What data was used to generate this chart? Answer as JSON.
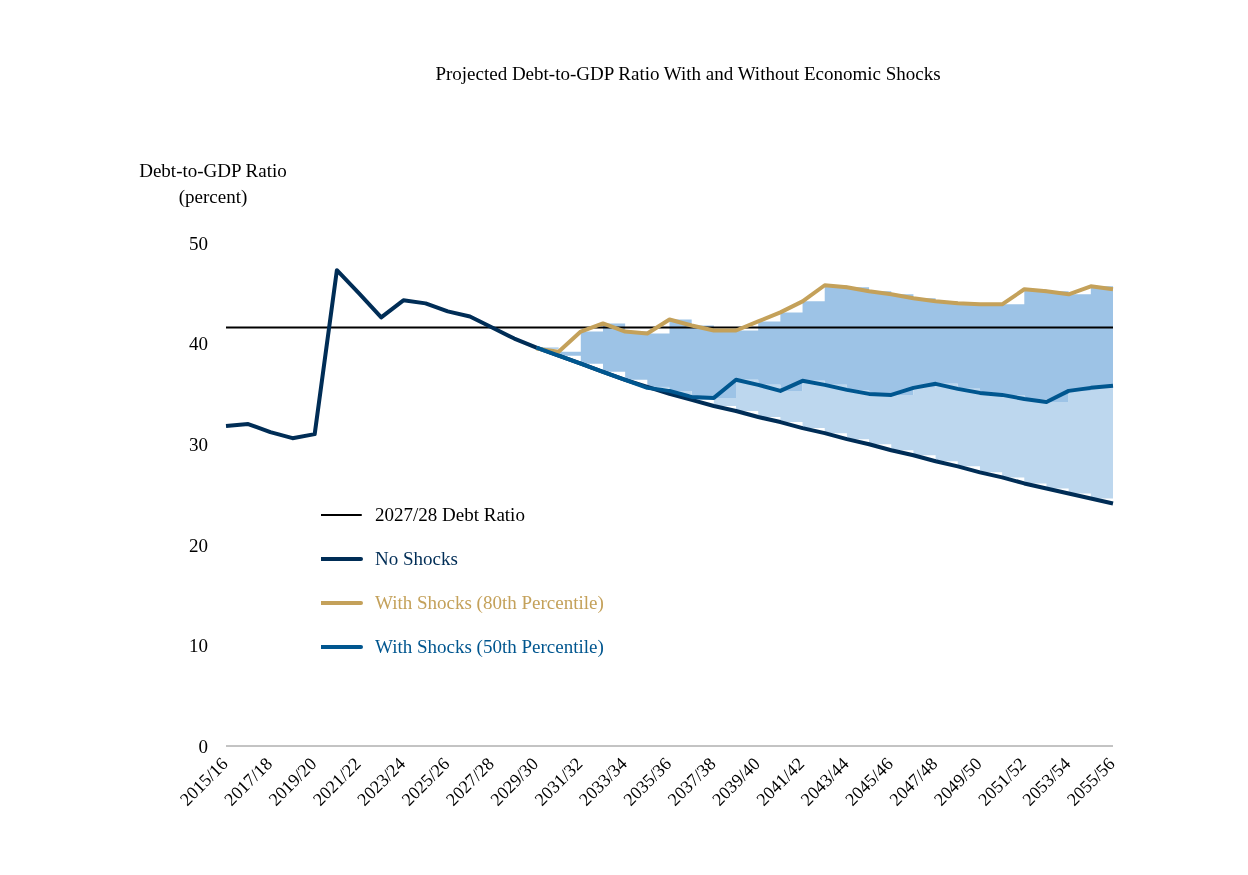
{
  "chart_data": {
    "type": "line",
    "title": "Projected Debt-to-GDP Ratio With and Without Economic Shocks",
    "ylabel": "Debt-to-GDP Ratio (percent)",
    "categories": [
      "2015/16",
      null,
      "2017/18",
      null,
      "2019/20",
      null,
      "2021/22",
      null,
      "2023/24",
      null,
      "2025/26",
      null,
      "2027/28",
      null,
      "2029/30",
      null,
      "2031/32",
      null,
      "2033/34",
      null,
      "2035/36",
      null,
      "2037/38",
      null,
      "2039/40",
      null,
      "2041/42",
      null,
      "2043/44",
      null,
      "2045/46",
      null,
      "2047/48",
      null,
      "2049/50",
      null,
      "2051/52",
      null,
      "2053/54",
      null,
      "2055/56"
    ],
    "series": [
      {
        "name": "No Shocks",
        "color": "#002d56",
        "values": [
          31.8,
          32.0,
          31.2,
          30.6,
          31.0,
          47.3,
          45.0,
          42.6,
          44.3,
          44.0,
          43.2,
          42.7,
          41.6,
          40.5,
          39.6,
          38.8,
          38.0,
          37.2,
          36.4,
          35.7,
          35.0,
          34.4,
          33.8,
          33.3,
          32.7,
          32.2,
          31.6,
          31.1,
          30.5,
          30.0,
          29.4,
          28.9,
          28.3,
          27.8,
          27.2,
          26.7,
          26.1,
          25.6,
          25.1,
          24.6,
          24.1
        ]
      },
      {
        "name": "With Shocks (80th Percentile)",
        "color": "#c4a15a",
        "values": [
          null,
          null,
          null,
          null,
          null,
          null,
          null,
          null,
          null,
          null,
          null,
          null,
          null,
          null,
          39.5,
          39.2,
          41.2,
          42.0,
          41.2,
          41.0,
          42.4,
          41.8,
          41.3,
          41.3,
          42.2,
          43.1,
          44.2,
          45.8,
          45.6,
          45.2,
          44.9,
          44.5,
          44.2,
          44.0,
          43.9,
          43.9,
          45.4,
          45.2,
          44.9,
          45.7,
          45.4
        ],
        "lower": [
          null,
          null,
          null,
          null,
          null,
          null,
          null,
          null,
          null,
          null,
          null,
          null,
          null,
          null,
          39.6,
          38.8,
          38.0,
          37.2,
          36.4,
          35.6,
          35.3,
          34.7,
          34.6,
          36.4,
          35.9,
          35.3,
          36.3,
          35.9,
          35.4,
          35.0,
          34.9,
          35.6,
          36.0,
          35.5,
          35.1,
          34.9,
          34.5,
          34.2,
          35.3,
          35.6,
          35.8
        ],
        "upper": [
          null,
          null,
          null,
          null,
          null,
          null,
          null,
          null,
          null,
          null,
          null,
          null,
          null,
          null,
          39.5,
          39.2,
          41.2,
          42.0,
          41.2,
          41.0,
          42.4,
          41.8,
          41.3,
          41.3,
          42.2,
          43.1,
          44.2,
          45.8,
          45.6,
          45.2,
          44.9,
          44.5,
          44.2,
          44.0,
          43.9,
          43.9,
          45.4,
          45.2,
          44.9,
          45.7,
          45.4
        ]
      },
      {
        "name": "With Shocks (50th Percentile)",
        "color": "#00568f",
        "values": [
          null,
          null,
          null,
          null,
          null,
          null,
          null,
          null,
          null,
          null,
          null,
          null,
          null,
          null,
          39.6,
          38.8,
          38.0,
          37.2,
          36.4,
          35.6,
          35.3,
          34.7,
          34.6,
          36.4,
          35.9,
          35.3,
          36.3,
          35.9,
          35.4,
          35.0,
          34.9,
          35.6,
          36.0,
          35.5,
          35.1,
          34.9,
          34.5,
          34.2,
          35.3,
          35.6,
          35.8
        ],
        "lower": [
          null,
          null,
          null,
          null,
          null,
          null,
          null,
          null,
          null,
          null,
          null,
          null,
          null,
          null,
          39.6,
          38.8,
          38.0,
          37.2,
          36.4,
          35.7,
          35.0,
          34.4,
          33.8,
          33.3,
          32.7,
          32.2,
          31.6,
          31.1,
          30.5,
          30.0,
          29.4,
          28.9,
          28.3,
          27.8,
          27.2,
          26.7,
          26.1,
          25.6,
          25.1,
          24.6,
          24.1
        ],
        "upper": [
          null,
          null,
          null,
          null,
          null,
          null,
          null,
          null,
          null,
          null,
          null,
          null,
          null,
          null,
          39.6,
          38.8,
          38.0,
          37.2,
          36.4,
          35.6,
          35.3,
          34.7,
          34.6,
          36.4,
          35.9,
          35.3,
          36.3,
          35.9,
          35.4,
          35.0,
          34.9,
          35.6,
          36.0,
          35.5,
          35.1,
          34.9,
          34.5,
          34.2,
          35.3,
          35.6,
          35.8
        ]
      }
    ],
    "ref_lines": [
      {
        "axis": "y",
        "value": 41.6,
        "label": "2027/28 Debt Ratio",
        "color": "#000000"
      }
    ],
    "ylim": [
      0,
      50
    ],
    "yticks": [
      0,
      10,
      20,
      30,
      40,
      50
    ],
    "grid": false,
    "legend": "bottom left",
    "marker": "none",
    "line_style": "solid"
  }
}
